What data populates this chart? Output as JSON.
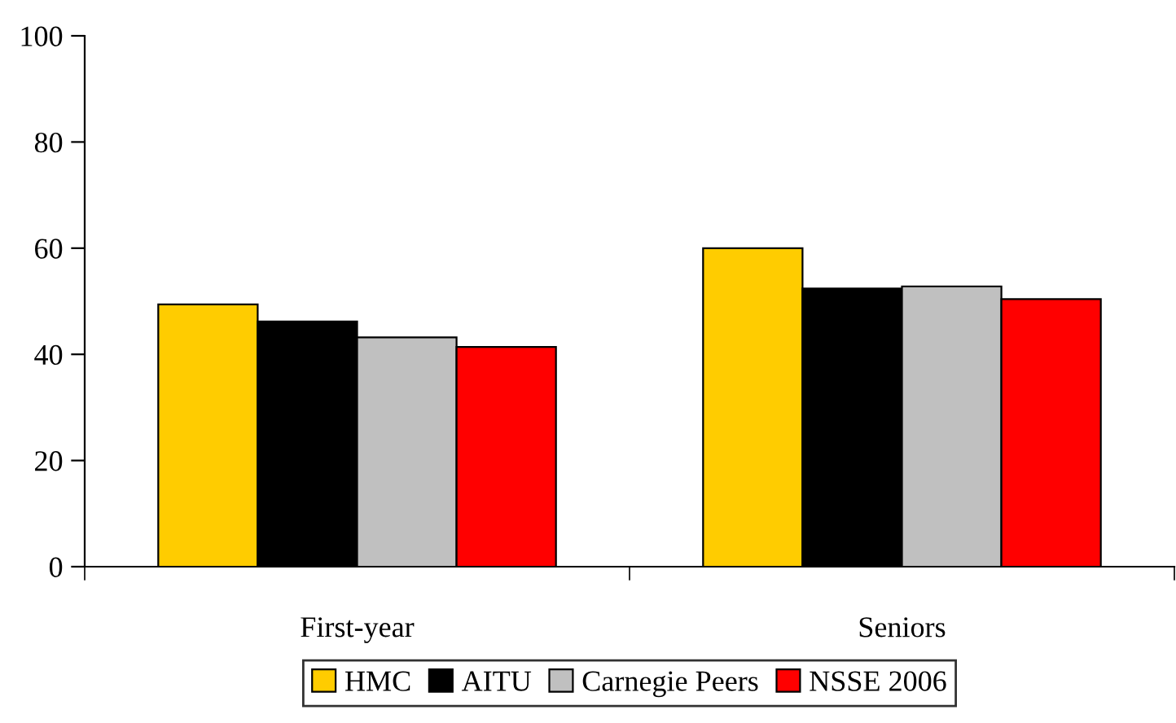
{
  "chart_data": {
    "type": "bar",
    "categories": [
      "First-year",
      "Seniors"
    ],
    "series": [
      {
        "name": "HMC",
        "color": "#ffcc00",
        "values": [
          49.4,
          60.0
        ]
      },
      {
        "name": "AITU",
        "color": "#000000",
        "values": [
          46.2,
          52.4
        ]
      },
      {
        "name": "Carnegie Peers",
        "color": "#c0c0c0",
        "values": [
          43.2,
          52.8
        ]
      },
      {
        "name": "NSSE 2006",
        "color": "#ff0000",
        "values": [
          41.4,
          50.4
        ]
      }
    ],
    "ylim": [
      0,
      100
    ],
    "yticks": [
      0,
      20,
      40,
      60,
      80,
      100
    ],
    "grid": false,
    "legend": "bottom"
  }
}
